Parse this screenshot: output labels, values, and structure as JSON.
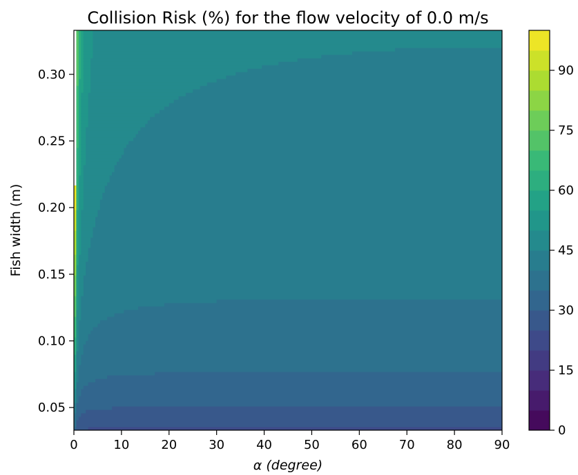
{
  "chart_data": {
    "type": "contourf",
    "title": "Collision Risk (%) for the flow velocity of 0.0 m/s",
    "xlabel": "α (degree)",
    "ylabel": "Fish width (m)",
    "xlim": [
      0,
      90
    ],
    "ylim": [
      0.033,
      0.333
    ],
    "x_ticks": [
      0,
      10,
      20,
      30,
      40,
      50,
      60,
      70,
      80,
      90
    ],
    "x_tick_labels": [
      "0",
      "10",
      "20",
      "30",
      "40",
      "50",
      "60",
      "70",
      "80",
      "90"
    ],
    "y_ticks": [
      0.05,
      0.1,
      0.15,
      0.2,
      0.25,
      0.3
    ],
    "y_tick_labels": [
      "0.05",
      "0.10",
      "0.15",
      "0.20",
      "0.25",
      "0.30"
    ],
    "colormap": "viridis",
    "colorbar": {
      "min": 0,
      "max": 100,
      "levels": [
        0,
        5,
        10,
        15,
        20,
        25,
        30,
        35,
        40,
        45,
        50,
        55,
        60,
        65,
        70,
        75,
        80,
        85,
        90,
        95,
        100
      ],
      "ticks": [
        0,
        15,
        30,
        45,
        60,
        75,
        90
      ],
      "tick_labels": [
        "0",
        "15",
        "30",
        "45",
        "60",
        "75",
        "90"
      ]
    },
    "grid": false,
    "undefined_region": "white area left of the yellow edge (alpha below about 4-10 degrees)",
    "min_value_region": "around alpha 70-90 degrees at fish width 0.04 (about 26-30 %)"
  }
}
